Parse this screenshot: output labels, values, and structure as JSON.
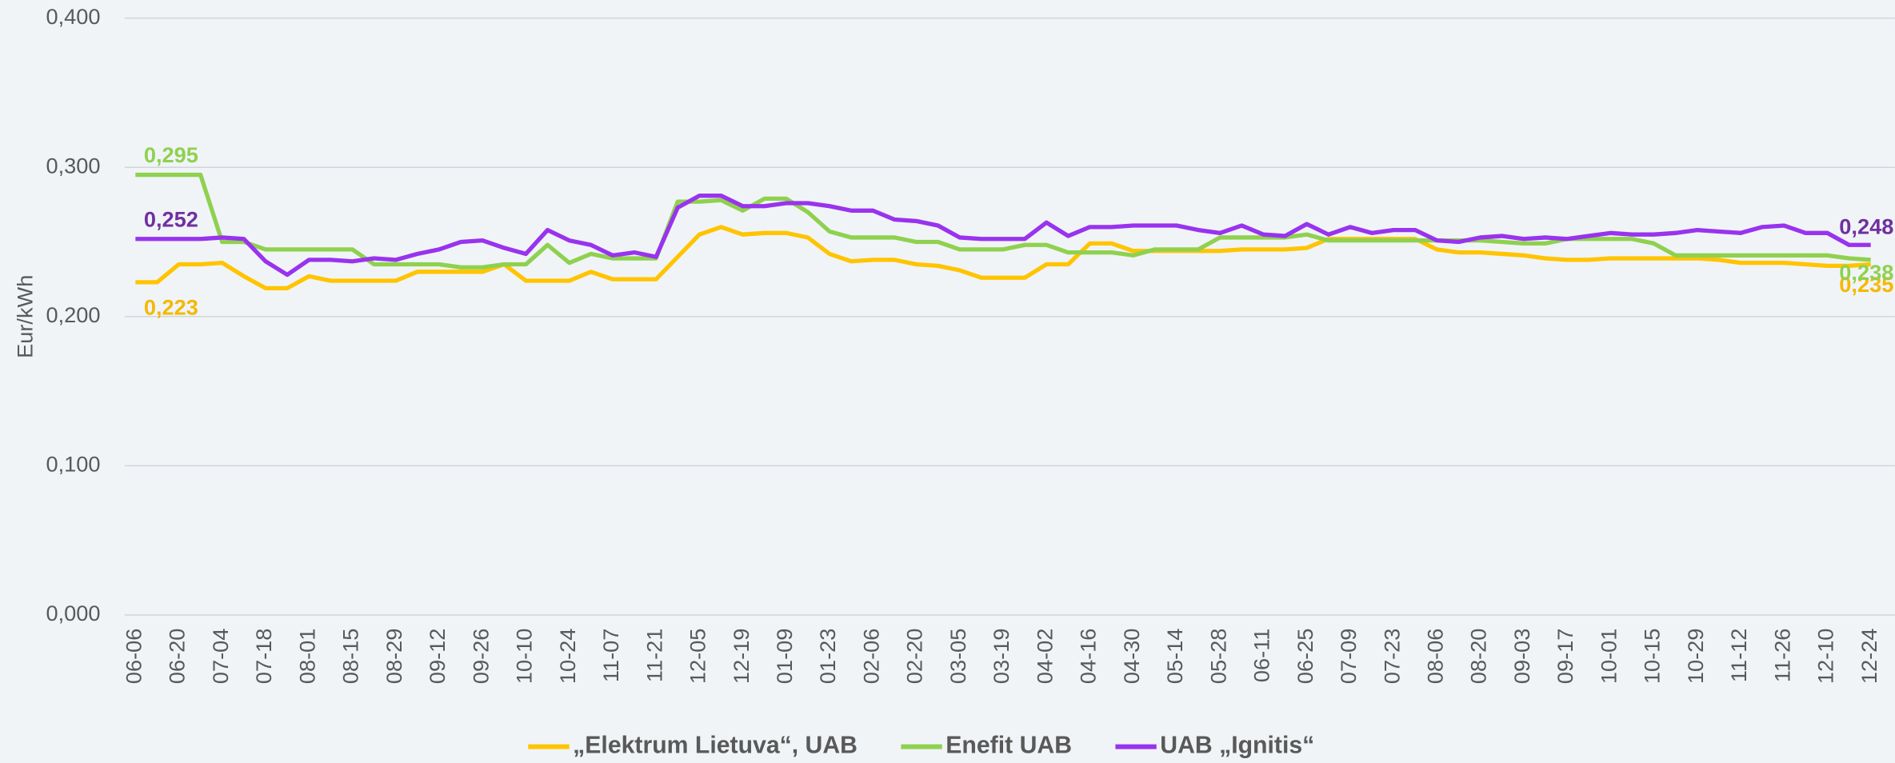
{
  "chart_data": {
    "type": "line",
    "y_label": "Eur/kWh",
    "categories": [
      "06-06",
      null,
      "06-20",
      null,
      "07-04",
      null,
      "07-18",
      null,
      "08-01",
      null,
      "08-15",
      null,
      "08-29",
      null,
      "09-12",
      null,
      "09-26",
      null,
      "10-10",
      null,
      "10-24",
      null,
      "11-07",
      null,
      "11-21",
      null,
      "12-05",
      null,
      "12-19",
      null,
      "01-09",
      null,
      "01-23",
      null,
      "02-06",
      null,
      "02-20",
      null,
      "03-05",
      null,
      "03-19",
      null,
      "04-02",
      null,
      "04-16",
      null,
      "04-30",
      null,
      "05-14",
      null,
      "05-28",
      null,
      "06-11",
      null,
      "06-25",
      null,
      "07-09",
      null,
      "07-23",
      null,
      "08-06",
      null,
      "08-20",
      null,
      "09-03",
      null,
      "09-17",
      null,
      "10-01",
      null,
      "10-15",
      null,
      "10-29",
      null,
      "11-12",
      null,
      "11-26",
      null,
      "12-10",
      null,
      "12-24"
    ],
    "series": [
      {
        "name": "„Elektrum Lietuva“, UAB",
        "color": "#ffc400",
        "label_color": "#f5b800",
        "values": [
          0.223,
          0.223,
          0.235,
          0.235,
          0.236,
          0.227,
          0.219,
          0.219,
          0.227,
          0.224,
          0.224,
          0.224,
          0.224,
          0.23,
          0.23,
          0.23,
          0.23,
          0.235,
          0.224,
          0.224,
          0.224,
          0.23,
          0.225,
          0.225,
          0.225,
          0.24,
          0.255,
          0.26,
          0.255,
          0.256,
          0.256,
          0.253,
          0.242,
          0.237,
          0.238,
          0.238,
          0.235,
          0.234,
          0.231,
          0.226,
          0.226,
          0.226,
          0.235,
          0.235,
          0.249,
          0.249,
          0.244,
          0.244,
          0.244,
          0.244,
          0.244,
          0.245,
          0.245,
          0.245,
          0.246,
          0.252,
          0.252,
          0.252,
          0.252,
          0.252,
          0.245,
          0.243,
          0.243,
          0.242,
          0.241,
          0.239,
          0.238,
          0.238,
          0.239,
          0.239,
          0.239,
          0.239,
          0.239,
          0.238,
          0.236,
          0.236,
          0.236,
          0.235,
          0.234,
          0.234,
          0.235
        ],
        "value_labels": [
          "0,223",
          null,
          null,
          null,
          null,
          null,
          null,
          null,
          null,
          null,
          null,
          null,
          null,
          null,
          null,
          null,
          null,
          null,
          null,
          null,
          null,
          null,
          null,
          null,
          null,
          null,
          null,
          null,
          null,
          null,
          null,
          null,
          null,
          null,
          null,
          null,
          null,
          null,
          null,
          null,
          null,
          null,
          null,
          null,
          null,
          null,
          null,
          null,
          null,
          null,
          null,
          null,
          null,
          null,
          null,
          null,
          null,
          null,
          null,
          null,
          null,
          null,
          null,
          null,
          null,
          null,
          null,
          null,
          null,
          null,
          null,
          null,
          null,
          null,
          null,
          null,
          null,
          null,
          null,
          null,
          "0,235"
        ]
      },
      {
        "name": "Enefit UAB",
        "color": "#8fd14f",
        "label_color": "#8fd14f",
        "values": [
          0.295,
          0.295,
          0.295,
          0.295,
          0.25,
          0.25,
          0.245,
          0.245,
          0.245,
          0.245,
          0.245,
          0.235,
          0.235,
          0.235,
          0.235,
          0.233,
          0.233,
          0.235,
          0.235,
          0.248,
          0.236,
          0.242,
          0.239,
          0.239,
          0.239,
          0.277,
          0.277,
          0.278,
          0.271,
          0.279,
          0.279,
          0.27,
          0.257,
          0.253,
          0.253,
          0.253,
          0.25,
          0.25,
          0.245,
          0.245,
          0.245,
          0.248,
          0.248,
          0.243,
          0.243,
          0.243,
          0.241,
          0.245,
          0.245,
          0.245,
          0.253,
          0.253,
          0.253,
          0.253,
          0.255,
          0.251,
          0.251,
          0.251,
          0.251,
          0.251,
          0.251,
          0.251,
          0.251,
          0.25,
          0.249,
          0.249,
          0.252,
          0.252,
          0.252,
          0.252,
          0.249,
          0.241,
          0.241,
          0.241,
          0.241,
          0.241,
          0.241,
          0.241,
          0.241,
          0.239,
          0.238
        ],
        "value_labels": [
          "0,295",
          null,
          null,
          null,
          null,
          null,
          null,
          null,
          null,
          null,
          null,
          null,
          null,
          null,
          null,
          null,
          null,
          null,
          null,
          null,
          null,
          null,
          null,
          null,
          null,
          null,
          null,
          null,
          null,
          null,
          null,
          null,
          null,
          null,
          null,
          null,
          null,
          null,
          null,
          null,
          null,
          null,
          null,
          null,
          null,
          null,
          null,
          null,
          null,
          null,
          null,
          null,
          null,
          null,
          null,
          null,
          null,
          null,
          null,
          null,
          null,
          null,
          null,
          null,
          null,
          null,
          null,
          null,
          null,
          null,
          null,
          null,
          null,
          null,
          null,
          null,
          null,
          null,
          null,
          null,
          "0,238"
        ]
      },
      {
        "name": "UAB „Ignitis“",
        "color": "#9933ee",
        "label_color": "#7030a0",
        "values": [
          0.252,
          0.252,
          0.252,
          0.252,
          0.253,
          0.252,
          0.237,
          0.228,
          0.238,
          0.238,
          0.237,
          0.239,
          0.238,
          0.242,
          0.245,
          0.25,
          0.251,
          0.246,
          0.242,
          0.258,
          0.251,
          0.248,
          0.241,
          0.243,
          0.24,
          0.273,
          0.281,
          0.281,
          0.274,
          0.274,
          0.276,
          0.276,
          0.274,
          0.271,
          0.271,
          0.265,
          0.264,
          0.261,
          0.253,
          0.252,
          0.252,
          0.252,
          0.263,
          0.254,
          0.26,
          0.26,
          0.261,
          0.261,
          0.261,
          0.258,
          0.256,
          0.261,
          0.255,
          0.254,
          0.262,
          0.255,
          0.26,
          0.256,
          0.258,
          0.258,
          0.251,
          0.25,
          0.253,
          0.254,
          0.252,
          0.253,
          0.252,
          0.254,
          0.256,
          0.255,
          0.255,
          0.256,
          0.258,
          0.257,
          0.256,
          0.26,
          0.261,
          0.256,
          0.256,
          0.248,
          0.248
        ],
        "value_labels": [
          "0,252",
          null,
          null,
          null,
          null,
          null,
          null,
          null,
          null,
          null,
          null,
          null,
          null,
          null,
          null,
          null,
          null,
          null,
          null,
          null,
          null,
          null,
          null,
          null,
          null,
          null,
          null,
          null,
          null,
          null,
          null,
          null,
          null,
          null,
          null,
          null,
          null,
          null,
          null,
          null,
          null,
          null,
          null,
          null,
          null,
          null,
          null,
          null,
          null,
          null,
          null,
          null,
          null,
          null,
          null,
          null,
          null,
          null,
          null,
          null,
          null,
          null,
          null,
          null,
          null,
          null,
          null,
          null,
          null,
          null,
          null,
          null,
          null,
          null,
          null,
          null,
          null,
          null,
          null,
          null,
          "0,248"
        ]
      }
    ],
    "ylim": [
      0,
      0.4
    ],
    "yticks": [
      {
        "value": 0,
        "label": "0,000"
      },
      {
        "value": 0.1,
        "label": "0,100"
      },
      {
        "value": 0.2,
        "label": "0,200"
      },
      {
        "value": 0.3,
        "label": "0,300"
      },
      {
        "value": 0.4,
        "label": "0,400"
      }
    ],
    "grid": true,
    "legend": "bottom"
  }
}
